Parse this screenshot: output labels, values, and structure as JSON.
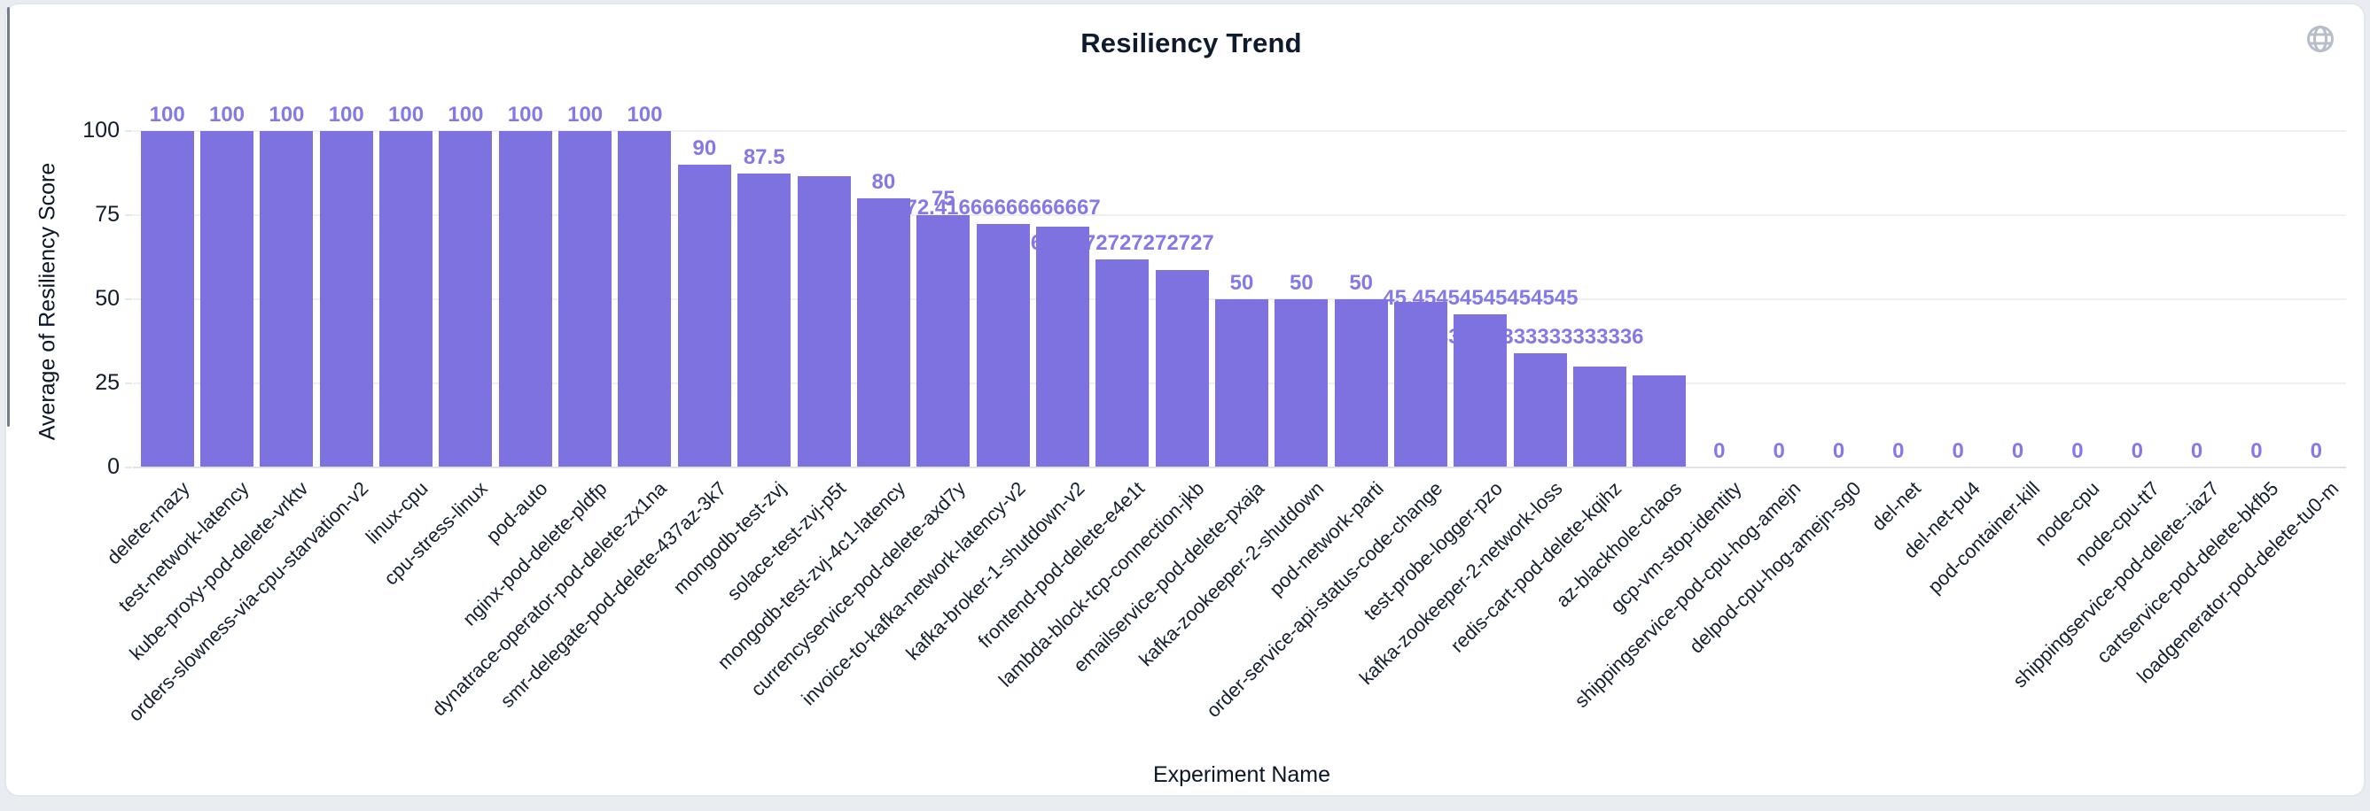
{
  "page": {
    "background": "#e9ecf1",
    "card_background": "#ffffff",
    "card_border_color": "#e3e6ec"
  },
  "header": {
    "title": "Resiliency Trend",
    "globe_icon_color": "#b7bdc9"
  },
  "chart_data": {
    "type": "bar",
    "title": "Resiliency Trend",
    "xlabel": "Experiment Name",
    "ylabel": "Average of Resiliency Score",
    "ylim": [
      0,
      100
    ],
    "yticks": [
      "0",
      "25",
      "50",
      "75",
      "100"
    ],
    "grid": true,
    "legend": false,
    "bar_color": "#7e72e0",
    "value_label_color": "#8579e8",
    "axis_text_color": "#111b2c",
    "categories": [
      "delete-rnazy",
      "test-network-latency",
      "kube-proxy-pod-delete-vrktv",
      "orders-slowness-via-cpu-starvation-v2",
      "linux-cpu",
      "cpu-stress-linux",
      "pod-auto",
      "nginx-pod-delete-pldfp",
      "dynatrace-operator-pod-delete-zx1na",
      "smr-delegate-pod-delete-437az-3k7",
      "mongodb-test-zvj",
      "solace-test-zvj-p5t",
      "mongodb-test-zvj-4c1-latency",
      "currencyservice-pod-delete-axd7y",
      "invoice-to-kafka-network-latency-v2",
      "kafka-broker-1-shutdown-v2",
      "frontend-pod-delete-e4e1t",
      "lambda-block-tcp-connection-jkb",
      "emailservice-pod-delete-pxaja",
      "kafka-zookeeper-2-shutdown",
      "pod-network-parti",
      "order-service-api-status-code-change",
      "test-probe-logger-pzo",
      "kafka-zookeeper-2-network-loss",
      "redis-cart-pod-delete-kqihz",
      "az-blackhole-chaos",
      "gcp-vm-stop-identity",
      "shippingservice-pod-cpu-hog-amejn",
      "delpod-cpu-hog-amejn-sg0",
      "del-net",
      "del-net-pu4",
      "pod-container-kill",
      "node-cpu",
      "node-cpu-tt7",
      "shippingservice-pod-delete--iaz7",
      "cartservice-pod-delete-bkfb5",
      "loadgenerator-pod-delete-tu0-m"
    ],
    "values": [
      100,
      100,
      100,
      100,
      100,
      100,
      100,
      100,
      100,
      90,
      87.5,
      86.7,
      80,
      75,
      72.41666666666667,
      71.6,
      61.7272727272727,
      58.7,
      50,
      50,
      50,
      49.3,
      45.45454545454545,
      33.833333333333336,
      30,
      27.5,
      0,
      0,
      0,
      0,
      0,
      0,
      0,
      0,
      0,
      0,
      0
    ],
    "value_labels": [
      "100",
      "100",
      "100",
      "100",
      "100",
      "100",
      "100",
      "100",
      "100",
      "90",
      "87.5",
      "",
      "80",
      "75",
      "72.41666666666667",
      "",
      "61.7272727272727",
      "",
      "50",
      "50",
      "50",
      "",
      "45.45454545454545",
      "33.833333333333336",
      "",
      "",
      "0",
      "0",
      "0",
      "0",
      "0",
      "0",
      "0",
      "0",
      "0",
      "0",
      "0"
    ]
  }
}
